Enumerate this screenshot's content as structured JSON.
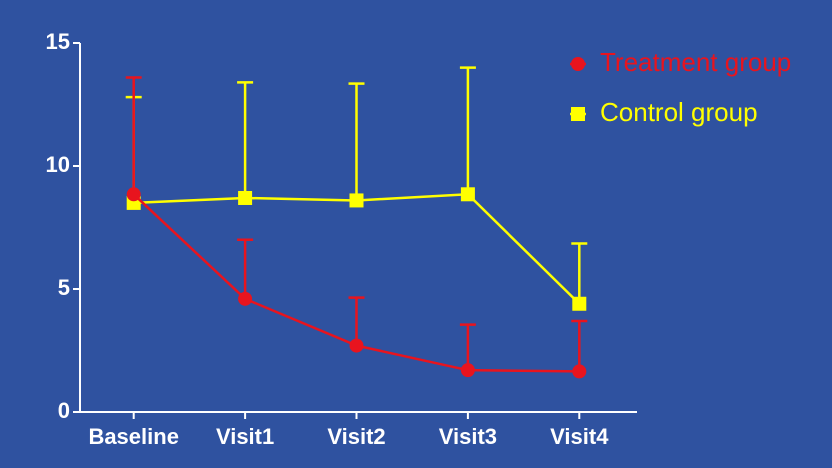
{
  "chart_data": {
    "type": "line",
    "categories": [
      "Baseline",
      "Visit1",
      "Visit2",
      "Visit3",
      "Visit4"
    ],
    "series": [
      {
        "name": "Treatment group",
        "color": "#e8141e",
        "marker": "circle",
        "values": [
          8.85,
          4.6,
          2.7,
          1.7,
          1.65
        ],
        "errors": [
          4.75,
          2.4,
          1.95,
          1.85,
          2.05
        ]
      },
      {
        "name": "Control group",
        "color": "#ffff00",
        "marker": "square",
        "values": [
          8.5,
          8.7,
          8.6,
          8.85,
          4.4
        ],
        "errors": [
          4.3,
          4.7,
          4.75,
          5.15,
          2.45
        ]
      }
    ],
    "ylim": [
      0,
      15
    ],
    "yticks": [
      0,
      5,
      10,
      15
    ],
    "legend": "top-right"
  }
}
